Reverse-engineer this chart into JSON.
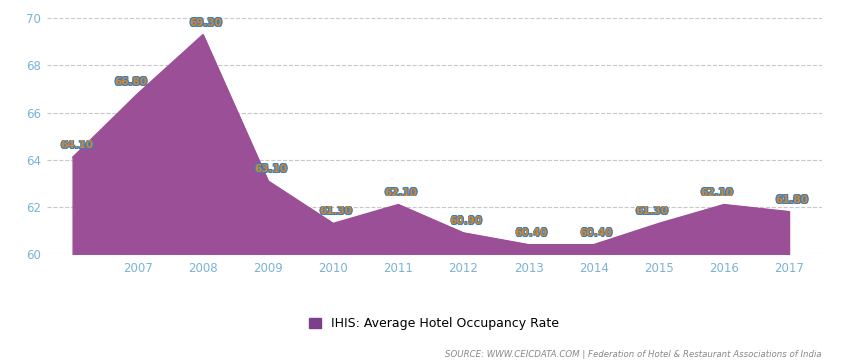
{
  "years": [
    2006,
    2007,
    2008,
    2009,
    2010,
    2011,
    2012,
    2013,
    2014,
    2015,
    2016,
    2017
  ],
  "values": [
    64.1,
    66.8,
    69.3,
    63.1,
    61.3,
    62.1,
    60.9,
    60.4,
    60.4,
    61.3,
    62.1,
    61.8
  ],
  "labels": [
    "64.10",
    "66.80",
    "69.30",
    "63.10",
    "61.30",
    "62.10",
    "60.90",
    "60.40",
    "60.40",
    "61.30",
    "62.10",
    "61.80"
  ],
  "x_tick_labels": [
    "2007",
    "2008",
    "2009",
    "2010",
    "2011",
    "2012",
    "2013",
    "2014",
    "2015",
    "2016",
    "2017"
  ],
  "x_tick_positions": [
    2007,
    2008,
    2009,
    2010,
    2011,
    2012,
    2013,
    2014,
    2015,
    2016,
    2017
  ],
  "ylim": [
    60,
    70
  ],
  "yticks": [
    60,
    62,
    64,
    66,
    68,
    70
  ],
  "fill_color": "#9B4F96",
  "line_color": "#9B4F96",
  "label_color_main": "#D4872A",
  "label_color_outline": "#3B7EC0",
  "tick_color": "#7BB3D4",
  "legend_label": "IHIS: Average Hotel Occupancy Rate",
  "legend_color": "#7B3F8C",
  "source_text": "SOURCE: WWW.CEICDATA.COM | Federation of Hotel & Restaurant Associations of India",
  "grid_color": "#c8c8c8",
  "bg_color": "#ffffff",
  "fig_bg_color": "#ffffff",
  "xlim_left": 2005.6,
  "xlim_right": 2017.5
}
